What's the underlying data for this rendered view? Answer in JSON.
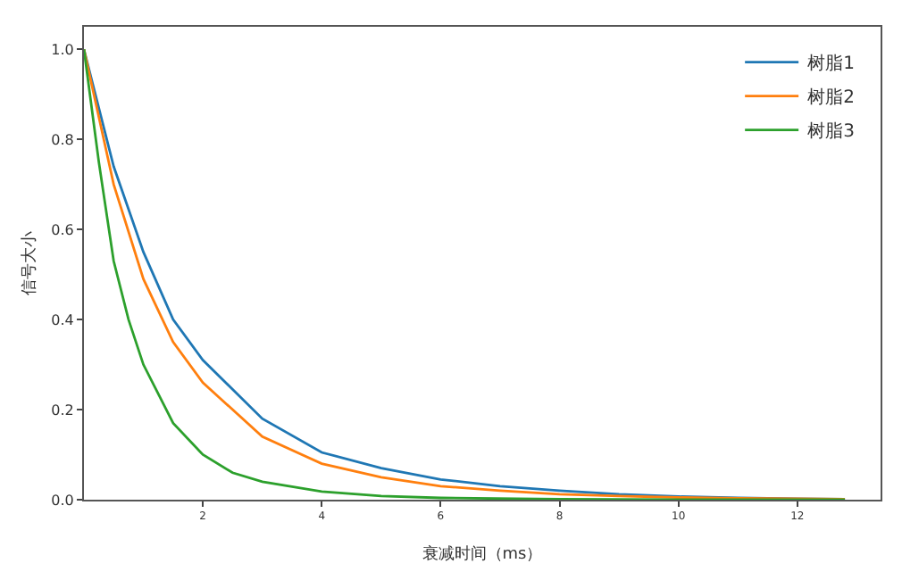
{
  "chart_data": {
    "type": "line",
    "xlabel": "衰减时间（ms）",
    "ylabel": "信号大小",
    "xlim": [
      0,
      13.4
    ],
    "ylim": [
      0,
      1.05
    ],
    "xticks": [
      2,
      4,
      6,
      8,
      10,
      12
    ],
    "yticks": [
      {
        "value": 0,
        "label": "0.0"
      },
      {
        "value": 0.2,
        "label": "0.2"
      },
      {
        "value": 0.4,
        "label": "0.4"
      },
      {
        "value": 0.6,
        "label": "0.6"
      },
      {
        "value": 0.8,
        "label": "0.8"
      },
      {
        "value": 1,
        "label": "1.0"
      }
    ],
    "grid": false,
    "legend": "top right",
    "marker": "none",
    "line_style": "solid",
    "series": [
      {
        "name": "树脂1",
        "color": "#1f77b4",
        "x": [
          0,
          0.5,
          1,
          1.5,
          2,
          3,
          4,
          5,
          6,
          7,
          8,
          9,
          10,
          11,
          12,
          12.8
        ],
        "values": [
          1,
          0.74,
          0.55,
          0.4,
          0.31,
          0.18,
          0.105,
          0.07,
          0.045,
          0.03,
          0.02,
          0.012,
          0.007,
          0.004,
          0.002,
          0.001
        ]
      },
      {
        "name": "树脂2",
        "color": "#ff7f0e",
        "x": [
          0,
          0.5,
          1,
          1.5,
          2,
          3,
          4,
          5,
          6,
          7,
          8,
          9,
          10,
          11,
          12,
          12.8
        ],
        "values": [
          1,
          0.7,
          0.49,
          0.35,
          0.26,
          0.14,
          0.08,
          0.05,
          0.03,
          0.02,
          0.012,
          0.008,
          0.005,
          0.003,
          0.002,
          0.001
        ]
      },
      {
        "name": "树脂3",
        "color": "#2ca02c",
        "x": [
          0,
          0.25,
          0.5,
          0.75,
          1,
          1.5,
          2,
          2.5,
          3,
          4,
          5,
          6,
          8,
          10,
          12.8
        ],
        "values": [
          1,
          0.75,
          0.53,
          0.4,
          0.3,
          0.17,
          0.1,
          0.06,
          0.04,
          0.018,
          0.008,
          0.004,
          0.001,
          0,
          0
        ]
      }
    ]
  }
}
